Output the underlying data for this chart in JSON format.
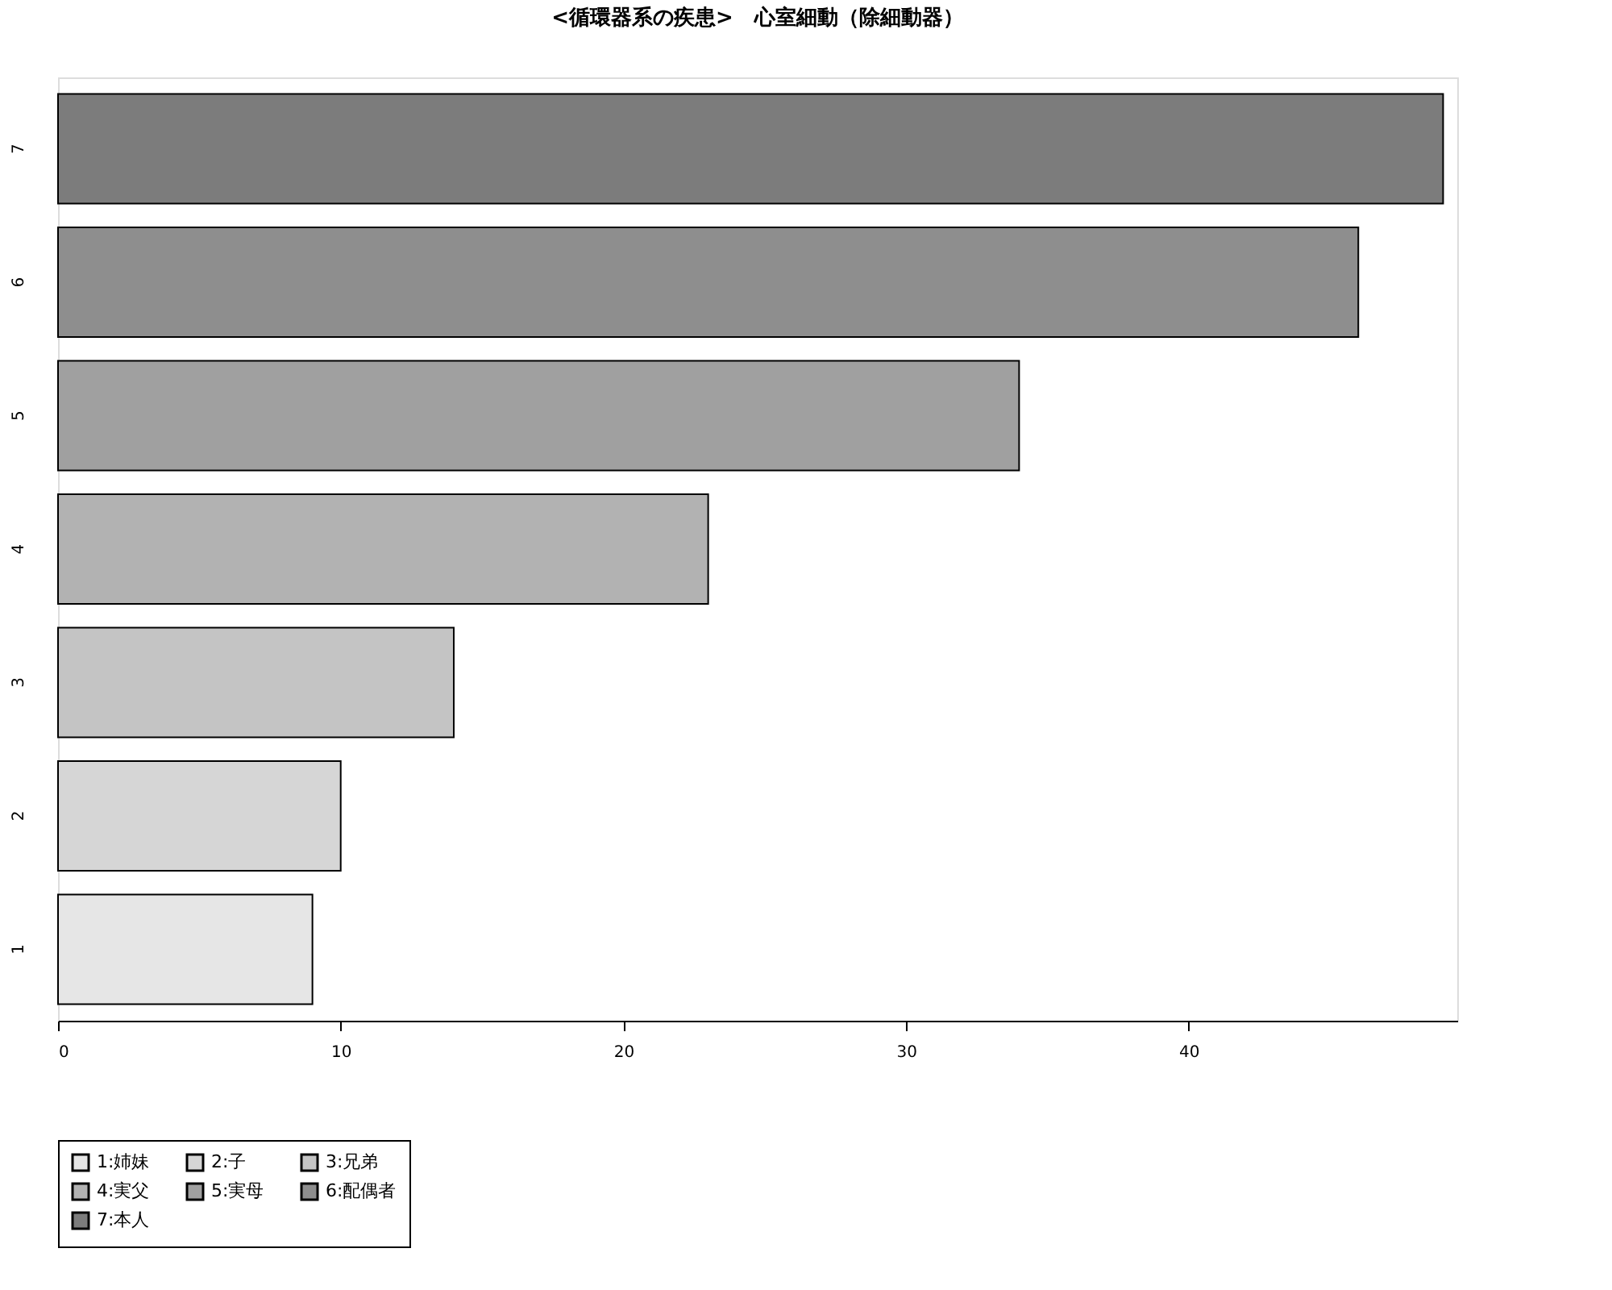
{
  "chart_data": {
    "type": "bar",
    "orientation": "horizontal",
    "title": "<循環器系の疾患>　心室細動（除細動器）",
    "categories": [
      "7",
      "6",
      "5",
      "4",
      "3",
      "2",
      "1"
    ],
    "series": [
      {
        "name": "1:姉妹",
        "color": "#e6e6e6",
        "values": [
          null,
          null,
          null,
          null,
          null,
          null,
          9
        ]
      },
      {
        "name": "2:子",
        "color": "#d6d6d6",
        "values": [
          null,
          null,
          null,
          null,
          null,
          10,
          null
        ]
      },
      {
        "name": "3:兄弟",
        "color": "#c4c4c4",
        "values": [
          null,
          null,
          null,
          null,
          14,
          null,
          null
        ]
      },
      {
        "name": "4:実父",
        "color": "#b2b2b2",
        "values": [
          null,
          null,
          null,
          23,
          null,
          null,
          null
        ]
      },
      {
        "name": "5:実母",
        "color": "#a0a0a0",
        "values": [
          null,
          null,
          34,
          null,
          null,
          null,
          null
        ]
      },
      {
        "name": "6:配偶者",
        "color": "#8e8e8e",
        "values": [
          null,
          46,
          null,
          null,
          null,
          null,
          null
        ]
      },
      {
        "name": "7:本人",
        "color": "#7c7c7c",
        "values": [
          49,
          null,
          null,
          null,
          null,
          null,
          null
        ]
      }
    ],
    "xlim": [
      0,
      49.5
    ],
    "xticks": [
      0,
      10,
      20,
      30,
      40
    ],
    "grid": false,
    "legend": "bottom left"
  }
}
